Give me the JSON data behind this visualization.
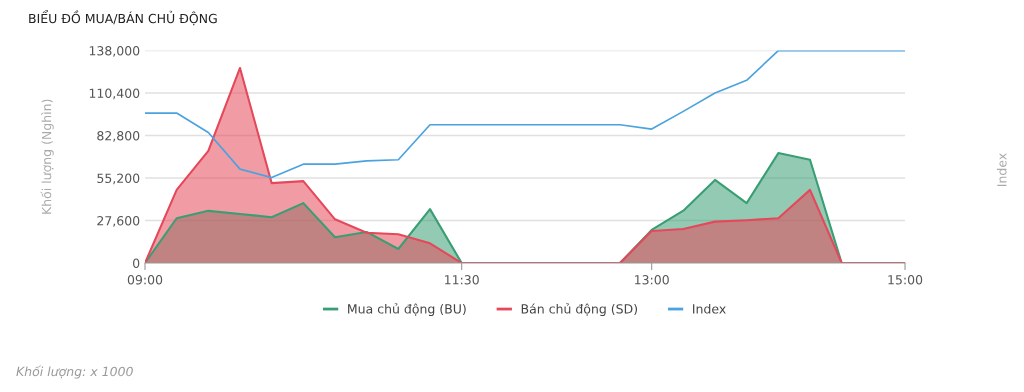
{
  "chart_data": {
    "type": "area",
    "title": "BIỂU ĐỒ MUA/BÁN CHỦ ĐỘNG",
    "ylabel": "Khối lượng (Nghìn)",
    "annotations": [
      "Index",
      "Khối lượng: x 1000"
    ],
    "x": [
      9,
      9.25,
      9.5,
      9.75,
      10,
      10.25,
      10.5,
      10.75,
      11,
      11.25,
      11.5,
      11.75,
      12,
      12.25,
      12.5,
      12.75,
      13,
      13.25,
      13.5,
      13.75,
      14,
      14.25,
      14.5,
      14.75,
      15
    ],
    "series": [
      {
        "name": "Mua chủ động (BU)",
        "color": "#3a9e74",
        "values": [
          0,
          29100,
          33900,
          31900,
          29700,
          38900,
          16700,
          20200,
          9100,
          35000,
          0,
          0,
          0,
          0,
          0,
          0,
          21500,
          34000,
          54000,
          38900,
          71400,
          67100,
          0,
          0,
          0
        ]
      },
      {
        "name": "Bán chủ động (SD)",
        "color": "#e5485a",
        "values": [
          0,
          47500,
          72900,
          126700,
          51900,
          53200,
          28400,
          19700,
          18700,
          12800,
          0,
          0,
          0,
          0,
          0,
          0,
          20800,
          22100,
          26900,
          27800,
          29100,
          47500,
          0,
          0,
          0
        ]
      },
      {
        "name": "Index",
        "type": "line",
        "color": "#4aa3df",
        "values": [
          97400,
          97400,
          84800,
          61000,
          55500,
          64200,
          64200,
          66400,
          67100,
          89800,
          89800,
          89800,
          89800,
          89800,
          89800,
          89800,
          87000,
          98500,
          110400,
          118700,
          138000,
          138000,
          138000,
          138000,
          138000
        ]
      }
    ],
    "xlim": [
      9,
      15
    ],
    "xticks": [
      {
        "value": 9,
        "label": "09:00"
      },
      {
        "value": 11.5,
        "label": "11:30"
      },
      {
        "value": 13,
        "label": "13:00"
      },
      {
        "value": 15,
        "label": "15:00"
      }
    ],
    "ylim": [
      0,
      138000
    ],
    "yticks": [
      0,
      {
        "value": 27600,
        "label": "27,600"
      },
      {
        "value": 55200,
        "label": "55,200"
      },
      {
        "value": 82800,
        "label": "82,800"
      },
      {
        "value": 110400,
        "label": "110,400"
      },
      {
        "value": 138000,
        "label": "138,000"
      }
    ],
    "grid": "y",
    "legend": "bottom",
    "marker": "none",
    "line_style": "solid"
  }
}
